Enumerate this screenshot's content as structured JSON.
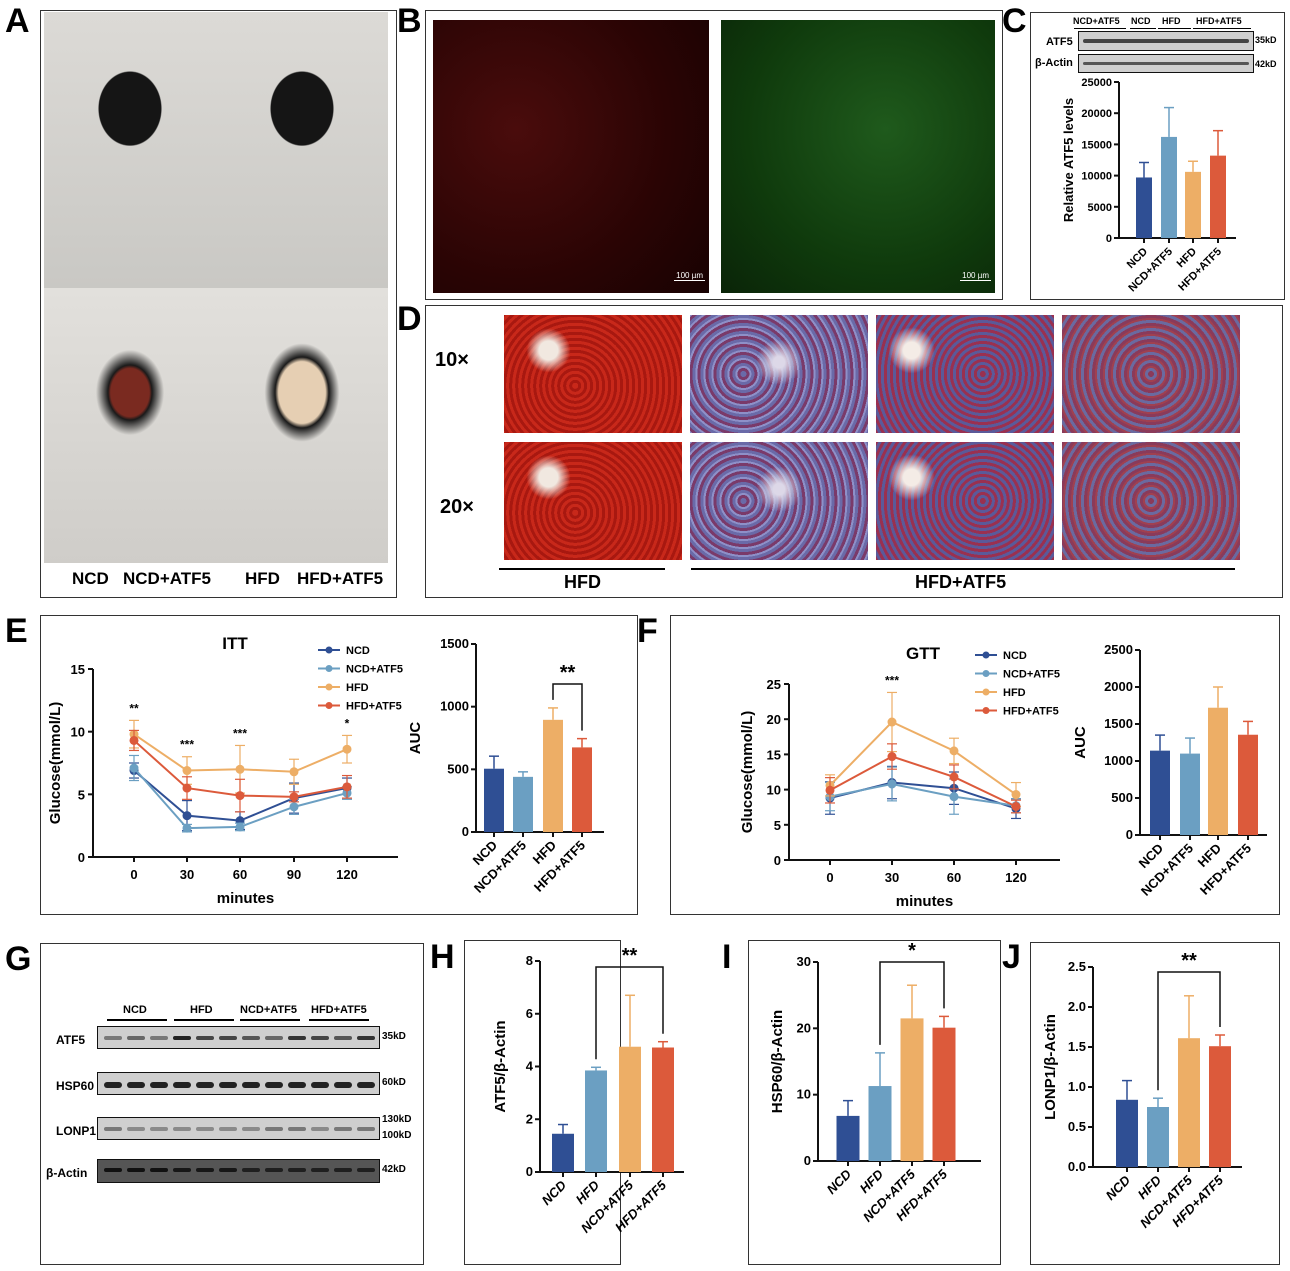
{
  "panel_labels": {
    "A": "A",
    "B": "B",
    "C": "C",
    "D": "D",
    "E": "E",
    "F": "F",
    "G": "G",
    "H": "H",
    "I": "I",
    "J": "J"
  },
  "panelA": {
    "groups": [
      "NCD",
      "NCD+ATF5",
      "HFD",
      "HFD+ATF5"
    ]
  },
  "panelB": {
    "scale_bar": "100 µm"
  },
  "panelC": {
    "blot_groups": [
      "NCD+ATF5",
      "NCD",
      "HFD",
      "HFD+ATF5"
    ],
    "rows": [
      {
        "name": "ATF5",
        "size": "35kD"
      },
      {
        "name": "β-Actin",
        "size": "42kD"
      }
    ]
  },
  "panelD": {
    "mag": [
      "10×",
      "20×"
    ],
    "groups": [
      "HFD",
      "HFD+ATF5"
    ]
  },
  "panelG": {
    "groups": [
      "NCD",
      "HFD",
      "NCD+ATF5",
      "HFD+ATF5"
    ],
    "rows": [
      {
        "name": "ATF5",
        "size": "35kD"
      },
      {
        "name": "HSP60",
        "size": "60kD"
      },
      {
        "name": "LONP1",
        "size": "130kD",
        "size2": "100kD"
      },
      {
        "name": "β-Actin",
        "size": "42kD"
      }
    ]
  },
  "colors": {
    "NCD": "#2f4f94",
    "NCD+ATF5": "#6b9fc2",
    "HFD": "#edae66",
    "HFD+ATF5": "#dc5a3b"
  },
  "chart_data": [
    {
      "id": "C",
      "type": "bar",
      "ylabel": "Relative ATF5 levels",
      "categories": [
        "NCD",
        "NCD+ATF5",
        "HFD",
        "HFD+ATF5"
      ],
      "values": [
        9700,
        16200,
        10600,
        13200
      ],
      "errors": [
        2400,
        4700,
        1700,
        4000
      ],
      "ylim": [
        0,
        25000
      ],
      "yticks": [
        0,
        5000,
        10000,
        15000,
        20000,
        25000
      ]
    },
    {
      "id": "E-line",
      "type": "line",
      "title": "ITT",
      "xlabel": "minutes",
      "ylabel": "Glucose(mmol/L)",
      "x": [
        0,
        30,
        60,
        90,
        120
      ],
      "xticks": [
        0,
        30,
        60,
        90,
        120
      ],
      "ylim": [
        0,
        15
      ],
      "yticks": [
        0,
        5,
        10,
        15
      ],
      "legend": "top-right",
      "series": [
        {
          "name": "NCD",
          "values": [
            6.9,
            3.3,
            2.9,
            4.7,
            5.5
          ],
          "errors": [
            0.6,
            1.2,
            0.7,
            1.2,
            0.8
          ]
        },
        {
          "name": "NCD+ATF5",
          "values": [
            7.1,
            2.3,
            2.4,
            4.0,
            5.1
          ],
          "errors": [
            1.0,
            0.3,
            0.3,
            0.6,
            0.5
          ]
        },
        {
          "name": "HFD",
          "values": [
            9.8,
            6.9,
            7.0,
            6.8,
            8.6
          ],
          "errors": [
            1.1,
            1.1,
            1.9,
            1.0,
            1.1
          ]
        },
        {
          "name": "HFD+ATF5",
          "values": [
            9.3,
            5.5,
            4.9,
            4.8,
            5.6
          ],
          "errors": [
            0.8,
            0.9,
            1.3,
            0.4,
            0.9
          ]
        }
      ],
      "annotations": [
        {
          "x": 0,
          "text": "**"
        },
        {
          "x": 30,
          "text": "***"
        },
        {
          "x": 60,
          "text": "***"
        },
        {
          "x": 120,
          "text": "*"
        }
      ]
    },
    {
      "id": "E-auc",
      "type": "bar",
      "ylabel": "AUC",
      "categories": [
        "NCD",
        "NCD+ATF5",
        "HFD",
        "HFD+ATF5"
      ],
      "values": [
        505,
        440,
        895,
        675
      ],
      "errors": [
        100,
        40,
        95,
        70
      ],
      "ylim": [
        0,
        1500
      ],
      "yticks": [
        0,
        500,
        1000,
        1500
      ],
      "significance": {
        "from": 2,
        "to": 3,
        "text": "**"
      }
    },
    {
      "id": "F-line",
      "type": "line",
      "title": "GTT",
      "xlabel": "minutes",
      "ylabel": "Glucose(mmol/L)",
      "x": [
        0,
        30,
        60,
        120
      ],
      "xticks": [
        0,
        30,
        60,
        120
      ],
      "ylim": [
        0,
        25
      ],
      "yticks": [
        0,
        5,
        10,
        15,
        20,
        25
      ],
      "legend": "top-right",
      "series": [
        {
          "name": "NCD",
          "values": [
            8.8,
            11.0,
            10.2,
            7.3
          ],
          "errors": [
            2.3,
            2.3,
            2.3,
            1.4
          ]
        },
        {
          "name": "NCD+ATF5",
          "values": [
            9.0,
            10.8,
            9.0,
            7.7
          ],
          "errors": [
            2.0,
            2.4,
            2.5,
            1.0
          ]
        },
        {
          "name": "HFD",
          "values": [
            10.6,
            19.6,
            15.5,
            9.3
          ],
          "errors": [
            1.5,
            4.2,
            1.8,
            1.7
          ]
        },
        {
          "name": "HFD+ATF5",
          "values": [
            9.9,
            14.7,
            11.8,
            7.6
          ],
          "errors": [
            1.8,
            1.8,
            1.7,
            0.9
          ]
        }
      ],
      "annotations": [
        {
          "x": 30,
          "text": "***"
        }
      ]
    },
    {
      "id": "F-auc",
      "type": "bar",
      "ylabel": "AUC",
      "categories": [
        "NCD",
        "NCD+ATF5",
        "HFD",
        "HFD+ATF5"
      ],
      "values": [
        1140,
        1100,
        1720,
        1355
      ],
      "errors": [
        210,
        210,
        280,
        180
      ],
      "ylim": [
        0,
        2500
      ],
      "yticks": [
        0,
        500,
        1000,
        1500,
        2000,
        2500
      ]
    },
    {
      "id": "H",
      "type": "bar",
      "ylabel": "ATF5/β-Actin",
      "categories": [
        "NCD",
        "HFD",
        "NCD+ATF5",
        "HFD+ATF5"
      ],
      "values": [
        1.45,
        3.85,
        4.75,
        4.72
      ],
      "errors": [
        0.35,
        0.12,
        1.95,
        0.22
      ],
      "ylim": [
        0,
        8
      ],
      "yticks": [
        0,
        2,
        4,
        6,
        8
      ],
      "significance": {
        "from": 1,
        "to": 3,
        "text": "**"
      }
    },
    {
      "id": "I",
      "type": "bar",
      "ylabel": "HSP60/β-Actin",
      "categories": [
        "NCD",
        "HFD",
        "NCD+ATF5",
        "HFD+ATF5"
      ],
      "values": [
        6.8,
        11.3,
        21.5,
        20.1
      ],
      "errors": [
        2.3,
        5.0,
        5.0,
        1.7
      ],
      "ylim": [
        0,
        30
      ],
      "yticks": [
        0,
        10,
        20,
        30
      ],
      "significance": {
        "from": 1,
        "to": 3,
        "text": "*"
      }
    },
    {
      "id": "J",
      "type": "bar",
      "ylabel": "LONP1/β-Actin",
      "categories": [
        "NCD",
        "HFD",
        "NCD+ATF5",
        "HFD+ATF5"
      ],
      "values": [
        0.84,
        0.75,
        1.61,
        1.51
      ],
      "errors": [
        0.24,
        0.11,
        0.53,
        0.14
      ],
      "ylim": [
        0,
        2.5
      ],
      "yticks": [
        "0.0",
        "0.5",
        "1.0",
        "1.5",
        "2.0",
        "2.5"
      ],
      "significance": {
        "from": 1,
        "to": 3,
        "text": "**"
      }
    }
  ]
}
